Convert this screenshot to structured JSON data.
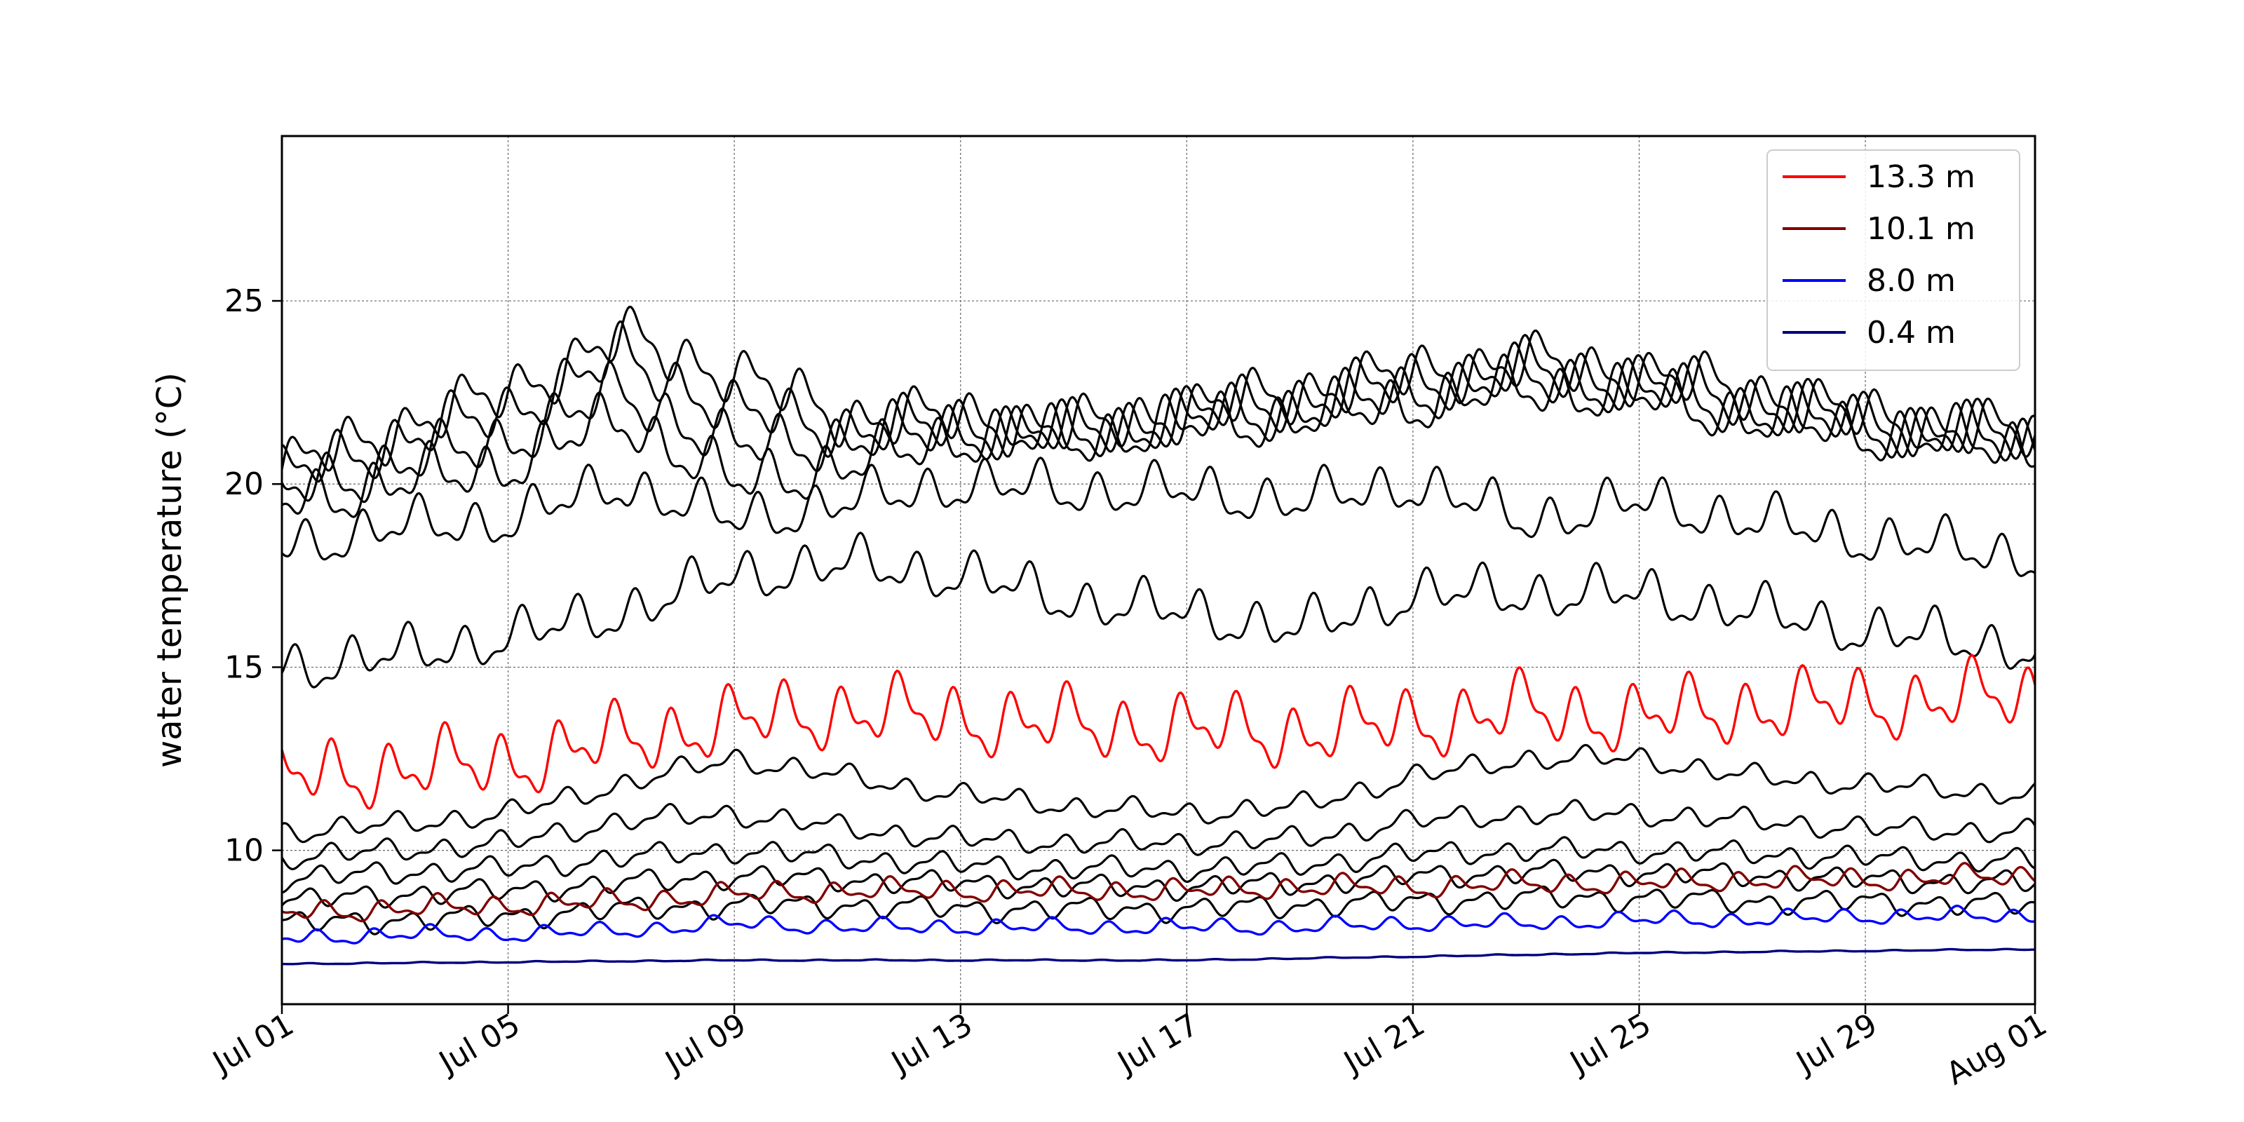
{
  "chart_data": {
    "type": "line",
    "title": "",
    "xlabel": "",
    "ylabel": "water temperature (°C)",
    "xlim": [
      "2023-07-01",
      "2023-08-01"
    ],
    "ylim": [
      5.8,
      29.5
    ],
    "x_ticks": [
      "Jul 01",
      "Jul 05",
      "Jul 09",
      "Jul 13",
      "Jul 17",
      "Jul 21",
      "Jul 25",
      "Jul 29",
      "Aug 01"
    ],
    "x_tick_dates": [
      "2023-07-01",
      "2023-07-05",
      "2023-07-09",
      "2023-07-13",
      "2023-07-17",
      "2023-07-21",
      "2023-07-25",
      "2023-07-29",
      "2023-08-01"
    ],
    "y_ticks": [
      10,
      15,
      20,
      25
    ],
    "grid": true,
    "legend_position": "top-right",
    "highlight_series": [
      {
        "name": "13.3 m",
        "color": "#ff0000",
        "x": [
          "2023-07-01",
          "2023-07-03",
          "2023-07-05",
          "2023-07-07",
          "2023-07-09",
          "2023-07-11",
          "2023-07-13",
          "2023-07-15",
          "2023-07-17",
          "2023-07-19",
          "2023-07-21",
          "2023-07-23",
          "2023-07-25",
          "2023-07-27",
          "2023-07-29",
          "2023-08-01"
        ],
        "y": [
          12.0,
          12.2,
          12.4,
          13.0,
          13.5,
          13.8,
          13.6,
          13.4,
          13.3,
          13.2,
          13.5,
          13.8,
          13.6,
          13.9,
          14.0,
          14.2
        ]
      },
      {
        "name": "10.1 m",
        "color": "#800000",
        "x": [
          "2023-07-01",
          "2023-07-03",
          "2023-07-05",
          "2023-07-07",
          "2023-07-09",
          "2023-07-11",
          "2023-07-13",
          "2023-07-15",
          "2023-07-17",
          "2023-07-19",
          "2023-07-21",
          "2023-07-23",
          "2023-07-25",
          "2023-07-27",
          "2023-07-29",
          "2023-08-01"
        ],
        "y": [
          8.3,
          8.4,
          8.5,
          8.6,
          8.8,
          8.9,
          8.9,
          8.9,
          8.9,
          9.0,
          9.0,
          9.1,
          9.1,
          9.2,
          9.2,
          9.3
        ]
      },
      {
        "name": "8.0 m",
        "color": "#0000ff",
        "x": [
          "2023-07-01",
          "2023-07-03",
          "2023-07-05",
          "2023-07-07",
          "2023-07-09",
          "2023-07-11",
          "2023-07-13",
          "2023-07-15",
          "2023-07-17",
          "2023-07-19",
          "2023-07-21",
          "2023-07-23",
          "2023-07-25",
          "2023-07-27",
          "2023-07-29",
          "2023-08-01"
        ],
        "y": [
          7.6,
          7.7,
          7.7,
          7.8,
          8.0,
          7.9,
          7.9,
          7.9,
          7.9,
          7.9,
          8.0,
          8.0,
          8.1,
          8.1,
          8.2,
          8.2
        ]
      },
      {
        "name": "0.4 m",
        "color": "#00007f",
        "x": [
          "2023-07-01",
          "2023-07-09",
          "2023-07-17",
          "2023-07-25",
          "2023-08-01"
        ],
        "y": [
          6.9,
          7.0,
          7.0,
          7.2,
          7.3
        ]
      }
    ],
    "background_series": {
      "color": "#000000",
      "x": [
        "2023-07-01",
        "2023-07-03",
        "2023-07-05",
        "2023-07-07",
        "2023-07-09",
        "2023-07-11",
        "2023-07-13",
        "2023-07-15",
        "2023-07-17",
        "2023-07-19",
        "2023-07-21",
        "2023-07-23",
        "2023-07-25",
        "2023-07-27",
        "2023-07-29",
        "2023-08-01"
      ],
      "series_y": [
        [
          20.4,
          21.5,
          22.5,
          24.0,
          23.0,
          21.8,
          21.8,
          21.5,
          22.0,
          22.5,
          23.0,
          23.3,
          23.0,
          22.5,
          21.8,
          21.3
        ],
        [
          20.2,
          21.2,
          22.0,
          23.5,
          22.0,
          21.5,
          21.6,
          21.4,
          21.9,
          22.3,
          22.8,
          23.1,
          22.8,
          22.3,
          21.7,
          21.2
        ],
        [
          19.8,
          20.5,
          21.2,
          22.5,
          21.0,
          21.2,
          21.5,
          21.3,
          21.8,
          22.0,
          22.5,
          22.9,
          22.6,
          22.0,
          21.6,
          21.1
        ],
        [
          19.5,
          20.0,
          20.5,
          21.8,
          20.0,
          20.5,
          21.3,
          21.2,
          21.6,
          21.8,
          22.2,
          22.6,
          22.4,
          21.8,
          21.4,
          21.0
        ],
        [
          18.3,
          18.8,
          19.0,
          20.0,
          19.0,
          19.5,
          20.0,
          19.8,
          19.8,
          19.5,
          20.0,
          19.0,
          19.5,
          19.0,
          18.5,
          18.0
        ],
        [
          15.0,
          15.3,
          15.8,
          16.5,
          17.5,
          17.8,
          17.5,
          16.8,
          16.5,
          16.0,
          17.0,
          17.0,
          17.0,
          16.5,
          16.0,
          15.5
        ],
        [
          10.5,
          10.7,
          11.0,
          11.8,
          12.5,
          12.0,
          11.5,
          11.2,
          11.0,
          11.2,
          12.0,
          12.5,
          12.5,
          12.0,
          11.8,
          11.5
        ],
        [
          9.8,
          10.0,
          10.2,
          10.8,
          11.0,
          10.6,
          10.3,
          10.2,
          10.2,
          10.3,
          10.8,
          11.0,
          11.0,
          10.8,
          10.6,
          10.5
        ],
        [
          9.2,
          9.4,
          9.5,
          9.8,
          10.0,
          9.8,
          9.6,
          9.5,
          9.5,
          9.6,
          9.9,
          10.0,
          10.0,
          9.9,
          9.8,
          9.7
        ],
        [
          8.6,
          8.8,
          8.9,
          9.1,
          9.3,
          9.2,
          9.1,
          9.0,
          9.0,
          9.1,
          9.3,
          9.4,
          9.4,
          9.3,
          9.2,
          9.1
        ],
        [
          8.0,
          8.1,
          8.2,
          8.4,
          8.5,
          8.5,
          8.4,
          8.4,
          8.4,
          8.5,
          8.6,
          8.7,
          8.7,
          8.6,
          8.6,
          8.5
        ]
      ]
    }
  }
}
